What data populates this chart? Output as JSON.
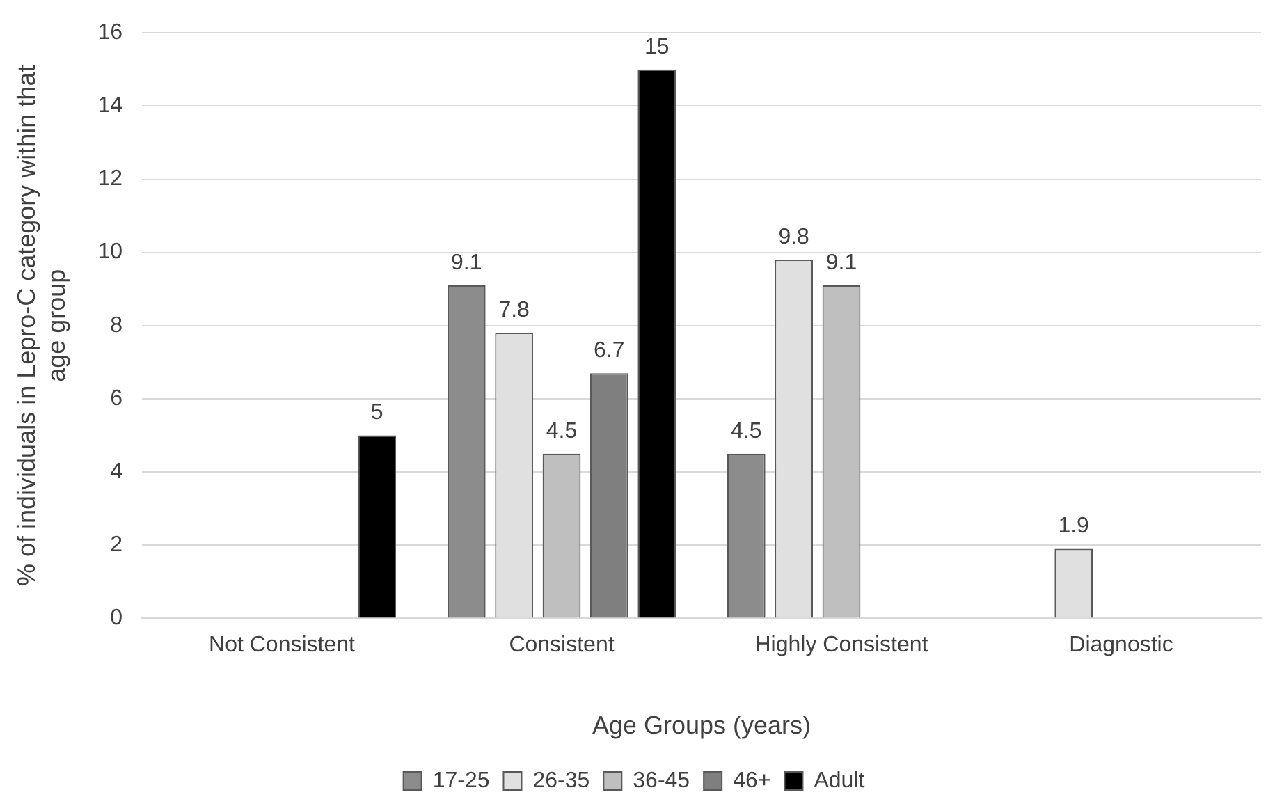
{
  "chart_data": {
    "type": "bar",
    "xlabel": "Age Groups (years)",
    "ylabel": "% of individuals in Lepro-C category within that age group",
    "categories": [
      "Not Consistent",
      "Consistent",
      "Highly Consistent",
      "Diagnostic"
    ],
    "series": [
      {
        "name": "17-25",
        "color": "#8c8c8c",
        "values": [
          null,
          9.1,
          4.5,
          null
        ]
      },
      {
        "name": "26-35",
        "color": "#e0e0e0",
        "values": [
          null,
          7.8,
          9.8,
          1.9
        ]
      },
      {
        "name": "36-45",
        "color": "#bfbfbf",
        "values": [
          null,
          4.5,
          9.1,
          null
        ]
      },
      {
        "name": "46+",
        "color": "#7f7f7f",
        "values": [
          null,
          6.7,
          null,
          null
        ]
      },
      {
        "name": "Adult",
        "color": "#000000",
        "values": [
          5,
          15,
          null,
          null
        ]
      }
    ],
    "ylim": [
      0,
      16
    ],
    "yticks": [
      0,
      2,
      4,
      6,
      8,
      10,
      12,
      14,
      16
    ],
    "grid": "y",
    "legend": "bottom",
    "data_labels": true
  }
}
